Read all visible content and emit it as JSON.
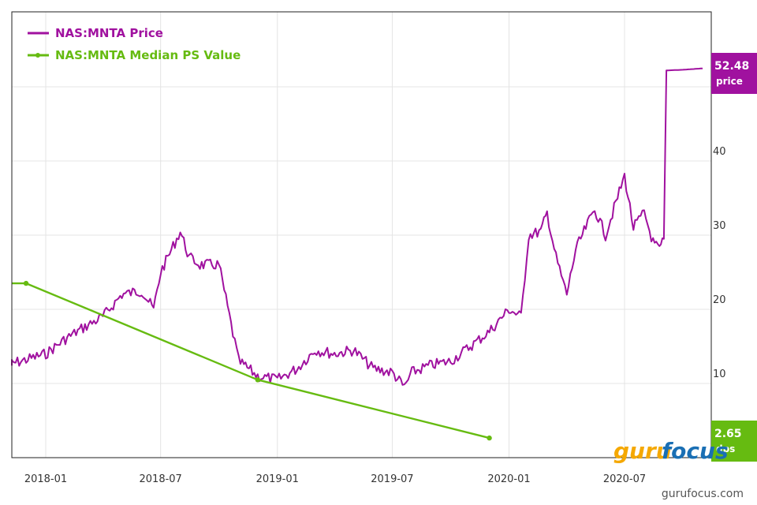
{
  "chart_data": {
    "type": "line",
    "title": "",
    "xlabel": "",
    "ylabel": "",
    "x_ticks": [
      "2018-01",
      "2018-07",
      "2019-01",
      "2019-07",
      "2020-01",
      "2020-07"
    ],
    "y_ticks": [
      10,
      20,
      30,
      40
    ],
    "ylim": [
      0,
      60
    ],
    "grid": true,
    "legend_position": "top-left",
    "series": [
      {
        "name": "NAS:MNTA Price",
        "color": "#a0119f",
        "points": [
          [
            "2017-11",
            12.5
          ],
          [
            "2017-12",
            13.2
          ],
          [
            "2018-01",
            14.0
          ],
          [
            "2018-02",
            16.0
          ],
          [
            "2018-03",
            17.5
          ],
          [
            "2018-04",
            19.0
          ],
          [
            "2018-05",
            22.0
          ],
          [
            "2018-06",
            22.5
          ],
          [
            "2018-06-20",
            20.0
          ],
          [
            "2018-07",
            25.0
          ],
          [
            "2018-08",
            30.5
          ],
          [
            "2018-08-15",
            27.0
          ],
          [
            "2018-09",
            26.0
          ],
          [
            "2018-10",
            26.0
          ],
          [
            "2018-10-20",
            18.0
          ],
          [
            "2018-11",
            13.0
          ],
          [
            "2018-12",
            11.0
          ],
          [
            "2019-01",
            10.5
          ],
          [
            "2019-02",
            12.0
          ],
          [
            "2019-03",
            14.5
          ],
          [
            "2019-04",
            14.0
          ],
          [
            "2019-05",
            14.5
          ],
          [
            "2019-06",
            12.0
          ],
          [
            "2019-07",
            11.5
          ],
          [
            "2019-07-20",
            9.5
          ],
          [
            "2019-08",
            11.5
          ],
          [
            "2019-09",
            12.5
          ],
          [
            "2019-10",
            13.0
          ],
          [
            "2019-11",
            15.0
          ],
          [
            "2019-12",
            17.0
          ],
          [
            "2020-01",
            20.0
          ],
          [
            "2020-01-20",
            19.0
          ],
          [
            "2020-02",
            30.0
          ],
          [
            "2020-02-20",
            30.5
          ],
          [
            "2020-03",
            33.0
          ],
          [
            "2020-03-15",
            27.0
          ],
          [
            "2020-04",
            22.0
          ],
          [
            "2020-04-15",
            28.0
          ],
          [
            "2020-05",
            31.0
          ],
          [
            "2020-05-15",
            33.5
          ],
          [
            "2020-06",
            30.0
          ],
          [
            "2020-07",
            38.0
          ],
          [
            "2020-07-15",
            31.0
          ],
          [
            "2020-08",
            33.0
          ],
          [
            "2020-08-15",
            29.0
          ],
          [
            "2020-08-25",
            28.0
          ],
          [
            "2020-09",
            29.5
          ],
          [
            "2020-09-05",
            52.2
          ],
          [
            "2020-10",
            52.3
          ],
          [
            "2020-11",
            52.48
          ]
        ]
      },
      {
        "name": "NAS:MNTA Median PS Value",
        "color": "#66bb11",
        "points": [
          [
            "2017-10",
            23.5
          ],
          [
            "2017-12",
            23.5
          ],
          [
            "2018-12",
            10.5
          ],
          [
            "2019-12",
            2.65
          ]
        ],
        "markers": [
          "2017-12",
          "2018-12",
          "2019-12"
        ]
      }
    ],
    "badges": [
      {
        "value": "52.48",
        "label": "price",
        "color": "#a0119f"
      },
      {
        "value": "2.65",
        "label": "dps",
        "color": "#66bb11"
      }
    ]
  },
  "legend": [
    {
      "label": "NAS:MNTA Price",
      "color": "#a0119f"
    },
    {
      "label": "NAS:MNTA Median PS Value",
      "color": "#66bb11"
    }
  ],
  "logo": {
    "part1": "guru",
    "part2": "focus"
  },
  "watermark": "gurufocus.com"
}
